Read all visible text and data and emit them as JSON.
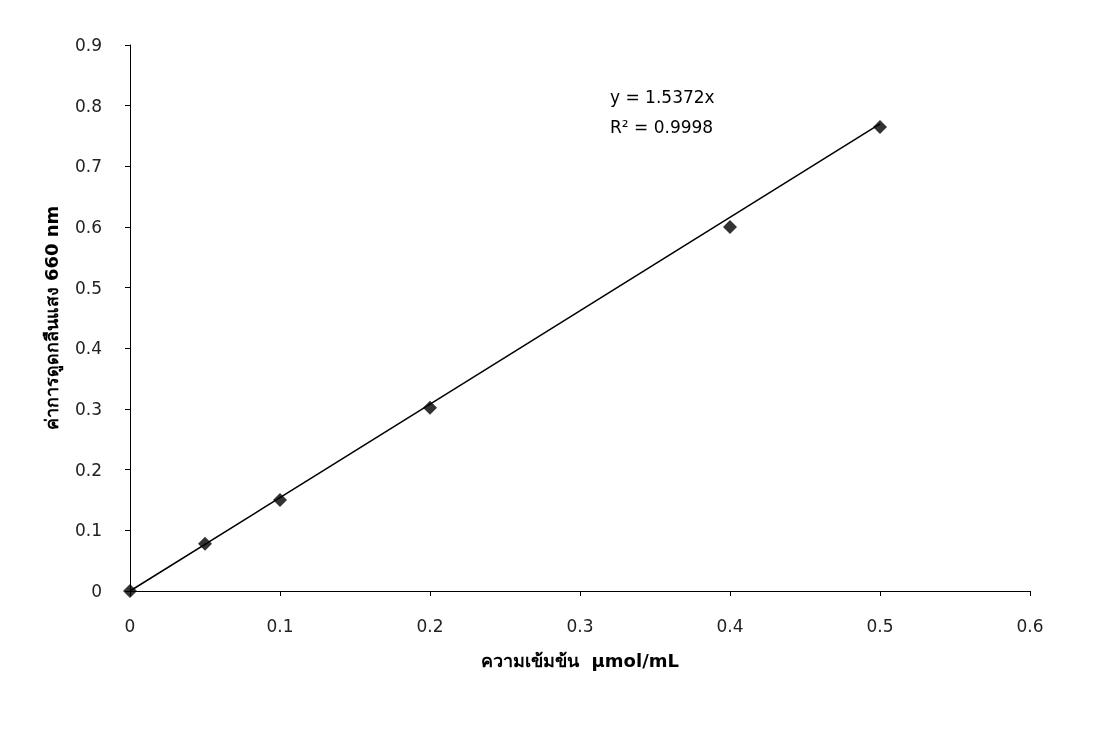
{
  "chart_data": {
    "type": "scatter",
    "xlabel": "ความเข้มข้น  µmol/mL",
    "ylabel": "ค่าการดูดกลืนแสง 660 nm",
    "annotations": [
      "y = 1.5372x",
      "R² = 0.9998"
    ],
    "series": [
      {
        "type": "scatter",
        "color": "#000000",
        "marker": "diamond",
        "x": [
          0,
          0.05,
          0.1,
          0.2,
          0.4,
          0.5
        ],
        "values": [
          0,
          0.078,
          0.15,
          0.302,
          0.6,
          0.765
        ]
      },
      {
        "type": "line",
        "color": "#000000",
        "line_style": "solid",
        "x": [
          0,
          0.5
        ],
        "values": [
          0,
          0.77
        ]
      }
    ],
    "xlim": [
      0,
      0.6
    ],
    "xticks": [
      0,
      0.1,
      0.2,
      0.3,
      0.4,
      0.5,
      0.6
    ],
    "ylim": [
      0,
      0.9
    ],
    "yticks": [
      0,
      0.1,
      0.2,
      0.3,
      0.4,
      0.5,
      0.6,
      0.7,
      0.8,
      0.9
    ],
    "grid": false
  }
}
